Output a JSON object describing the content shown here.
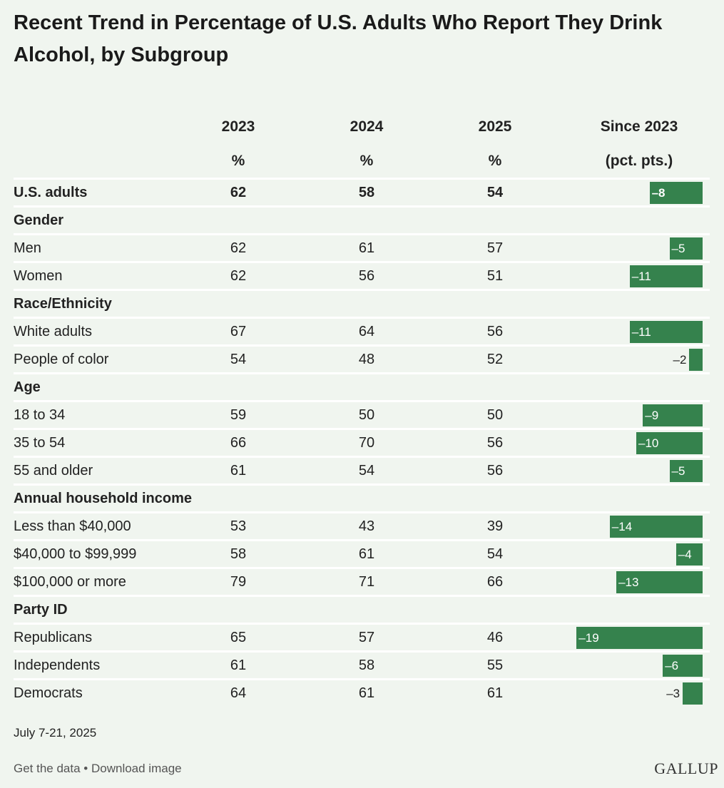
{
  "title": "Recent Trend in Percentage of U.S. Adults Who Report They Drink Alcohol, by Subgroup",
  "columns": {
    "y2023": {
      "label": "2023",
      "unit": "%"
    },
    "y2024": {
      "label": "2024",
      "unit": "%"
    },
    "y2025": {
      "label": "2025",
      "unit": "%"
    },
    "change": {
      "label": "Since 2023",
      "unit": "(pct. pts.)"
    }
  },
  "chart_data": {
    "type": "table",
    "title": "Recent Trend in Percentage of U.S. Adults Who Report They Drink Alcohol, by Subgroup",
    "bar_column": "Since 2023 (pct. pts.)",
    "bar_color": "#35824d",
    "rows": [
      {
        "label": "U.S. adults",
        "kind": "total",
        "v2023": 62,
        "v2024": 58,
        "v2025": 54,
        "change": -8,
        "change_label": "–8"
      },
      {
        "label": "Gender",
        "kind": "group"
      },
      {
        "label": "Men",
        "kind": "item",
        "v2023": 62,
        "v2024": 61,
        "v2025": 57,
        "change": -5,
        "change_label": "–5"
      },
      {
        "label": "Women",
        "kind": "item",
        "v2023": 62,
        "v2024": 56,
        "v2025": 51,
        "change": -11,
        "change_label": "–11"
      },
      {
        "label": "Race/Ethnicity",
        "kind": "group"
      },
      {
        "label": "White adults",
        "kind": "item",
        "v2023": 67,
        "v2024": 64,
        "v2025": 56,
        "change": -11,
        "change_label": "–11"
      },
      {
        "label": "People of color",
        "kind": "item",
        "v2023": 54,
        "v2024": 48,
        "v2025": 52,
        "change": -2,
        "change_label": "–2"
      },
      {
        "label": "Age",
        "kind": "group"
      },
      {
        "label": "18 to 34",
        "kind": "item",
        "v2023": 59,
        "v2024": 50,
        "v2025": 50,
        "change": -9,
        "change_label": "–9"
      },
      {
        "label": "35 to 54",
        "kind": "item",
        "v2023": 66,
        "v2024": 70,
        "v2025": 56,
        "change": -10,
        "change_label": "–10"
      },
      {
        "label": "55 and older",
        "kind": "item",
        "v2023": 61,
        "v2024": 54,
        "v2025": 56,
        "change": -5,
        "change_label": "–5"
      },
      {
        "label": "Annual household income",
        "kind": "group"
      },
      {
        "label": "Less than $40,000",
        "kind": "item",
        "v2023": 53,
        "v2024": 43,
        "v2025": 39,
        "change": -14,
        "change_label": "–14"
      },
      {
        "label": "$40,000 to $99,999",
        "kind": "item",
        "v2023": 58,
        "v2024": 61,
        "v2025": 54,
        "change": -4,
        "change_label": "–4"
      },
      {
        "label": "$100,000 or more",
        "kind": "item",
        "v2023": 79,
        "v2024": 71,
        "v2025": 66,
        "change": -13,
        "change_label": "–13"
      },
      {
        "label": "Party ID",
        "kind": "group"
      },
      {
        "label": "Republicans",
        "kind": "item",
        "v2023": 65,
        "v2024": 57,
        "v2025": 46,
        "change": -19,
        "change_label": "–19"
      },
      {
        "label": "Independents",
        "kind": "item",
        "v2023": 61,
        "v2024": 58,
        "v2025": 55,
        "change": -6,
        "change_label": "–6"
      },
      {
        "label": "Democrats",
        "kind": "item",
        "v2023": 64,
        "v2024": 61,
        "v2025": 61,
        "change": -3,
        "change_label": "–3"
      }
    ]
  },
  "footer": {
    "date": "July 7-21, 2025",
    "get_data": "Get the data",
    "separator": " • ",
    "download": "Download image",
    "logo": "GALLUP"
  }
}
